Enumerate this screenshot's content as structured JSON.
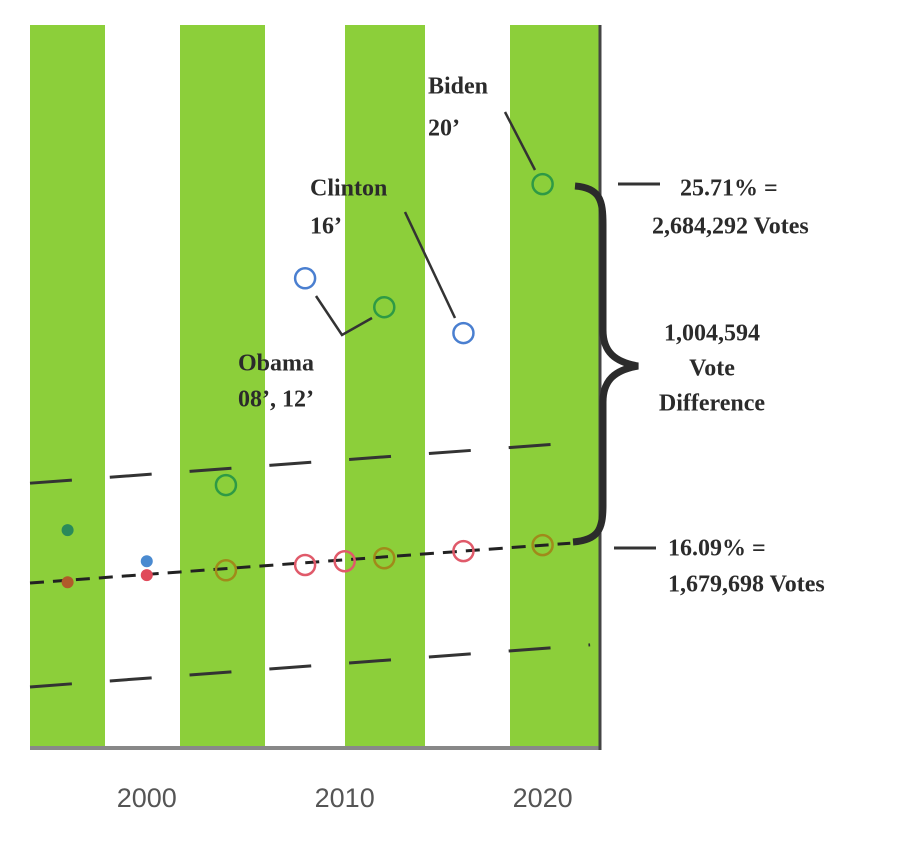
{
  "chart_data": {
    "type": "scatter",
    "xlim": [
      1994.1,
      2022.9
    ],
    "ylim": [
      10.63,
      29.95
    ],
    "xticks": [
      2000,
      2010,
      2020
    ],
    "series": [
      {
        "color": "#2e9a45",
        "marker": "open",
        "x": [
          2004,
          2012,
          2020
        ],
        "values": [
          17.69,
          22.43,
          25.71
        ]
      },
      {
        "color": "#4a7fd0",
        "marker": "open",
        "x": [
          2008,
          2016
        ],
        "values": [
          23.2,
          21.74
        ]
      },
      {
        "color": "#e05a6a",
        "marker": "open",
        "x": [
          2008,
          2010,
          2016
        ],
        "values": [
          15.56,
          15.66,
          15.93
        ]
      },
      {
        "color": "#a08a1a",
        "marker": "open",
        "x": [
          2004,
          2012,
          2020
        ],
        "values": [
          15.42,
          15.74,
          16.09
        ]
      },
      {
        "color": "#2a8a5a",
        "marker": "filled",
        "x": [
          1996
        ],
        "values": [
          16.49
        ]
      },
      {
        "color": "#b05a2a",
        "marker": "filled",
        "x": [
          1996
        ],
        "values": [
          15.1
        ]
      },
      {
        "color": "#4a8ad0",
        "marker": "filled",
        "x": [
          2000
        ],
        "values": [
          15.66
        ]
      },
      {
        "color": "#e04a5a",
        "marker": "filled",
        "x": [
          2000
        ],
        "values": [
          15.29
        ]
      }
    ],
    "lines": [
      {
        "x": [
          1994.1,
          2021.4
        ],
        "values": [
          15.08,
          16.14
        ],
        "style": "short-dash",
        "color": "#222222"
      },
      {
        "x": [
          1994.1,
          2021.4
        ],
        "values": [
          17.74,
          18.81
        ],
        "style": "long-dash",
        "color": "#333333"
      },
      {
        "x": [
          1994.1,
          2022.4
        ],
        "values": [
          12.31,
          13.43
        ],
        "style": "long-dash",
        "color": "#333333"
      }
    ],
    "annotations": [
      {
        "lines": [
          "Biden",
          "20’"
        ]
      },
      {
        "lines": [
          "Clinton",
          "16’"
        ]
      },
      {
        "lines": [
          "Obama",
          "08’, 12’"
        ]
      },
      {
        "lines": [
          "25.71% =",
          "2,684,292 Votes"
        ]
      },
      {
        "lines": [
          "1,004,594",
          "Vote",
          "Difference"
        ]
      },
      {
        "lines": [
          "16.09% =",
          "1,679,698 Votes"
        ]
      }
    ]
  }
}
